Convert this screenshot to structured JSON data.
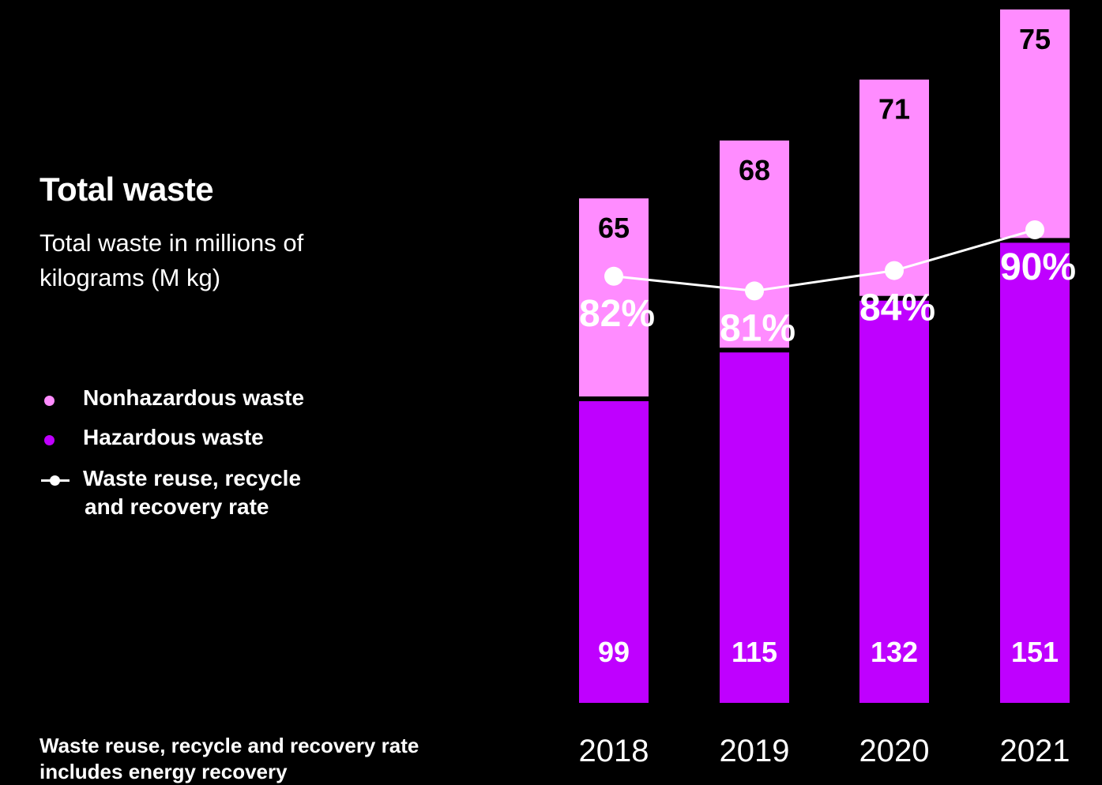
{
  "chart_data": {
    "type": "bar",
    "stacked": true,
    "title": "Total waste",
    "subtitle": "Total waste in millions of kilograms (M kg)",
    "categories": [
      "2018",
      "2019",
      "2020",
      "2021"
    ],
    "series": [
      {
        "name": "Hazardous waste",
        "values": [
          99,
          115,
          132,
          151
        ],
        "color": "#bf00ff",
        "kind": "bar"
      },
      {
        "name": "Nonhazardous waste",
        "values": [
          65,
          68,
          71,
          75
        ],
        "color": "#ff8cff",
        "kind": "bar"
      },
      {
        "name": "Waste reuse, recycle and recovery rate",
        "values": [
          82,
          81,
          84,
          90
        ],
        "color": "#ffffff",
        "kind": "line",
        "unit": "%"
      }
    ],
    "ylim": [
      0,
      226
    ],
    "grid": false,
    "legend": "left",
    "footnote": "Waste reuse, recycle and recovery rate includes energy recovery"
  },
  "legend": {
    "nonhazardous_label": "Nonhazardous waste",
    "hazardous_label": "Hazardous waste",
    "rate_label_line1": "Waste reuse, recycle",
    "rate_label_line2": "and recovery rate"
  }
}
